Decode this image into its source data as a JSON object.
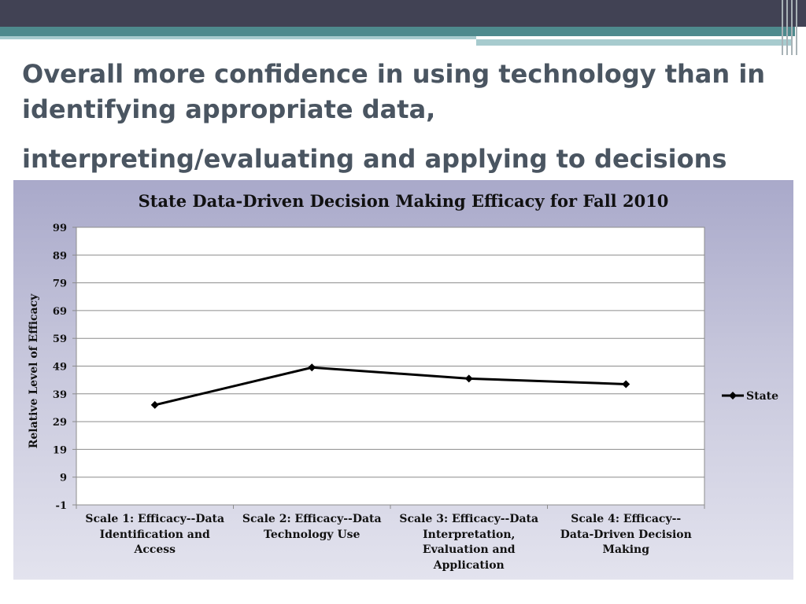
{
  "slide": {
    "title_line1": "Overall more confidence in using technology than in identifying appropriate data,",
    "title_line2": "interpreting/evaluating and applying to decisions"
  },
  "colors": {
    "top_bar": "#414254",
    "teal": "#4e8a8d",
    "series_line": "#000000"
  },
  "chart_data": {
    "type": "line",
    "title": "State Data-Driven Decision Making Efficacy for Fall 2010",
    "ylabel": "Relative Level of Efficacy",
    "xlabel": "",
    "ylim": [
      -1,
      99
    ],
    "yticks": [
      "-1",
      "9",
      "19",
      "29",
      "39",
      "49",
      "59",
      "69",
      "79",
      "89",
      "99"
    ],
    "grid": true,
    "legend_position": "right",
    "categories": [
      "Scale 1: Efficacy--Data Identification and Access",
      "Scale 2: Efficacy--Data Technology Use",
      "Scale 3: Efficacy--Data Interpretation, Evaluation and Application",
      "Scale 4: Efficacy--Data-Driven Decision Making"
    ],
    "category_lines": [
      [
        "Scale 1: Efficacy--Data",
        "Identification and",
        "Access"
      ],
      [
        "Scale 2: Efficacy--Data",
        "Technology Use"
      ],
      [
        "Scale 3: Efficacy--Data",
        "Interpretation,",
        "Evaluation and",
        "Application"
      ],
      [
        "Scale 4: Efficacy--",
        "Data-Driven Decision",
        "Making"
      ]
    ],
    "series": [
      {
        "name": "State",
        "values": [
          35,
          48.5,
          44.5,
          42.5
        ]
      }
    ]
  }
}
